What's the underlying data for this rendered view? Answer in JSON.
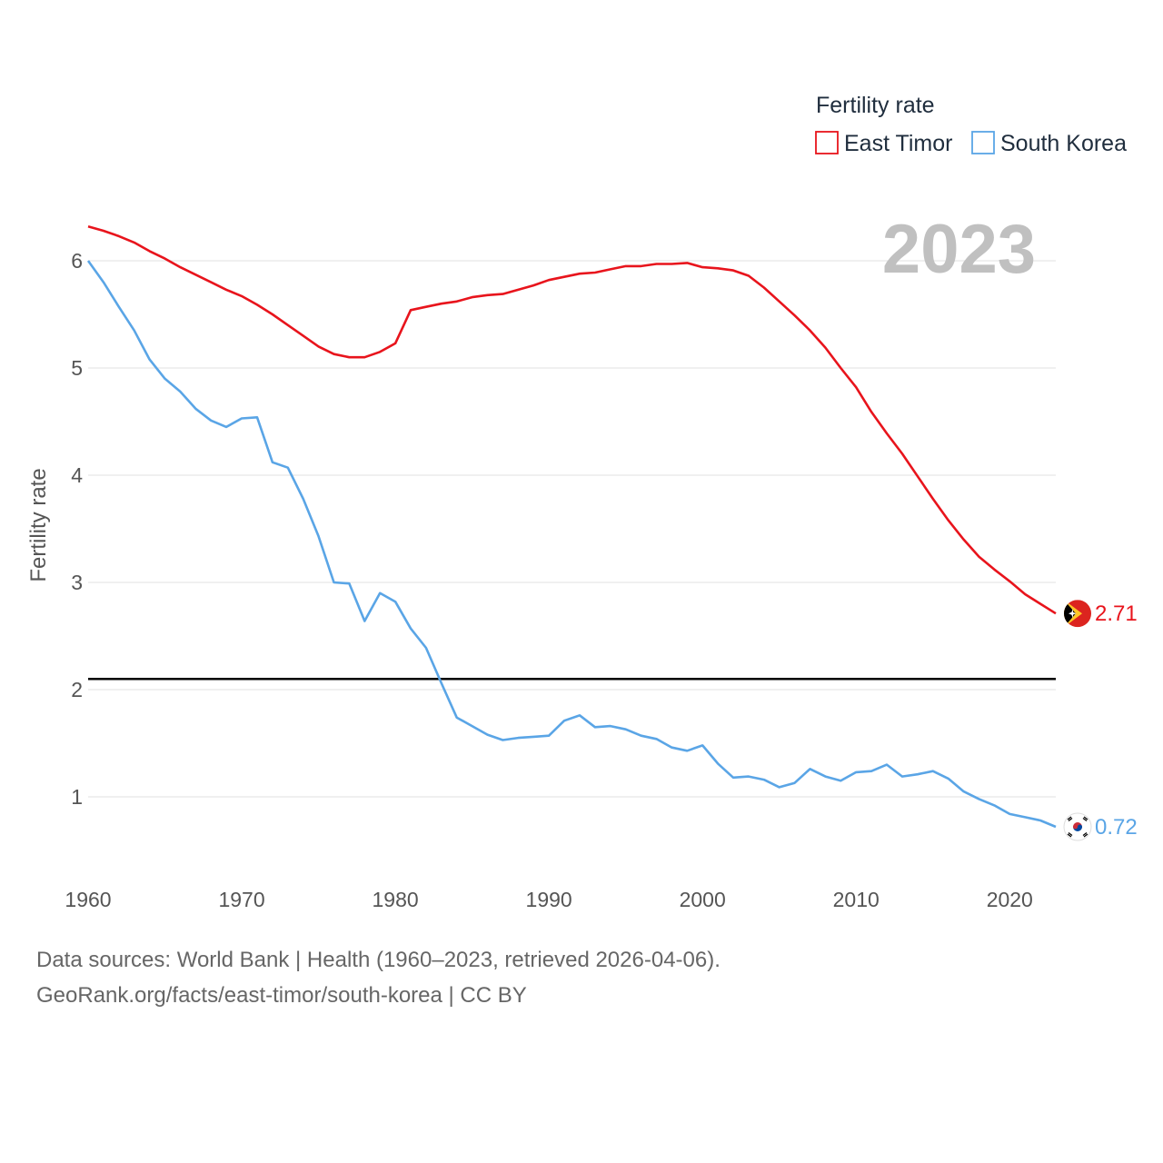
{
  "chart_data": {
    "type": "line",
    "legend_title": "Fertility rate",
    "ylabel": "Fertility rate",
    "ylim": [
      0.45,
      6.6
    ],
    "xlim": [
      1960,
      2023
    ],
    "yticks": [
      1,
      2,
      3,
      4,
      5,
      6
    ],
    "xticks": [
      1960,
      1970,
      1980,
      1990,
      2000,
      2010,
      2020
    ],
    "grid": true,
    "legend_position": "top-right",
    "year_label": "2023",
    "reference_line": 2.1,
    "x": [
      1960,
      1961,
      1962,
      1963,
      1964,
      1965,
      1966,
      1967,
      1968,
      1969,
      1970,
      1971,
      1972,
      1973,
      1974,
      1975,
      1976,
      1977,
      1978,
      1979,
      1980,
      1981,
      1982,
      1983,
      1984,
      1985,
      1986,
      1987,
      1988,
      1989,
      1990,
      1991,
      1992,
      1993,
      1994,
      1995,
      1996,
      1997,
      1998,
      1999,
      2000,
      2001,
      2002,
      2003,
      2004,
      2005,
      2006,
      2007,
      2008,
      2009,
      2010,
      2011,
      2012,
      2013,
      2014,
      2015,
      2016,
      2017,
      2018,
      2019,
      2020,
      2021,
      2022,
      2023
    ],
    "series": [
      {
        "name": "East Timor",
        "color": "#e8141c",
        "end_label": "2.71",
        "values": [
          6.32,
          6.28,
          6.23,
          6.17,
          6.09,
          6.02,
          5.94,
          5.87,
          5.8,
          5.73,
          5.67,
          5.59,
          5.5,
          5.4,
          5.3,
          5.2,
          5.13,
          5.1,
          5.1,
          5.15,
          5.23,
          5.54,
          5.57,
          5.6,
          5.62,
          5.66,
          5.68,
          5.69,
          5.73,
          5.77,
          5.82,
          5.85,
          5.88,
          5.89,
          5.92,
          5.95,
          5.95,
          5.97,
          5.97,
          5.98,
          5.94,
          5.93,
          5.91,
          5.86,
          5.75,
          5.62,
          5.49,
          5.35,
          5.19,
          5.0,
          4.82,
          4.59,
          4.39,
          4.2,
          3.99,
          3.78,
          3.58,
          3.4,
          3.24,
          3.12,
          3.01,
          2.89,
          2.8,
          2.71
        ]
      },
      {
        "name": "South Korea",
        "color": "#5aa5e6",
        "end_label": "0.72",
        "values": [
          6.0,
          5.8,
          5.57,
          5.35,
          5.08,
          4.9,
          4.78,
          4.62,
          4.51,
          4.45,
          4.53,
          4.54,
          4.12,
          4.07,
          3.78,
          3.43,
          3.0,
          2.99,
          2.64,
          2.9,
          2.82,
          2.57,
          2.39,
          2.06,
          1.74,
          1.66,
          1.58,
          1.53,
          1.55,
          1.56,
          1.57,
          1.71,
          1.76,
          1.65,
          1.66,
          1.63,
          1.57,
          1.54,
          1.46,
          1.43,
          1.48,
          1.31,
          1.18,
          1.19,
          1.16,
          1.09,
          1.13,
          1.26,
          1.19,
          1.15,
          1.23,
          1.24,
          1.3,
          1.19,
          1.21,
          1.24,
          1.17,
          1.05,
          0.98,
          0.92,
          0.84,
          0.81,
          0.78,
          0.72
        ]
      }
    ]
  },
  "sources": {
    "line1": "Data sources: World Bank | Health (1960–2023, retrieved 2026-04-06).",
    "line2": "GeoRank.org/facts/east-timor/south-korea | CC BY"
  }
}
